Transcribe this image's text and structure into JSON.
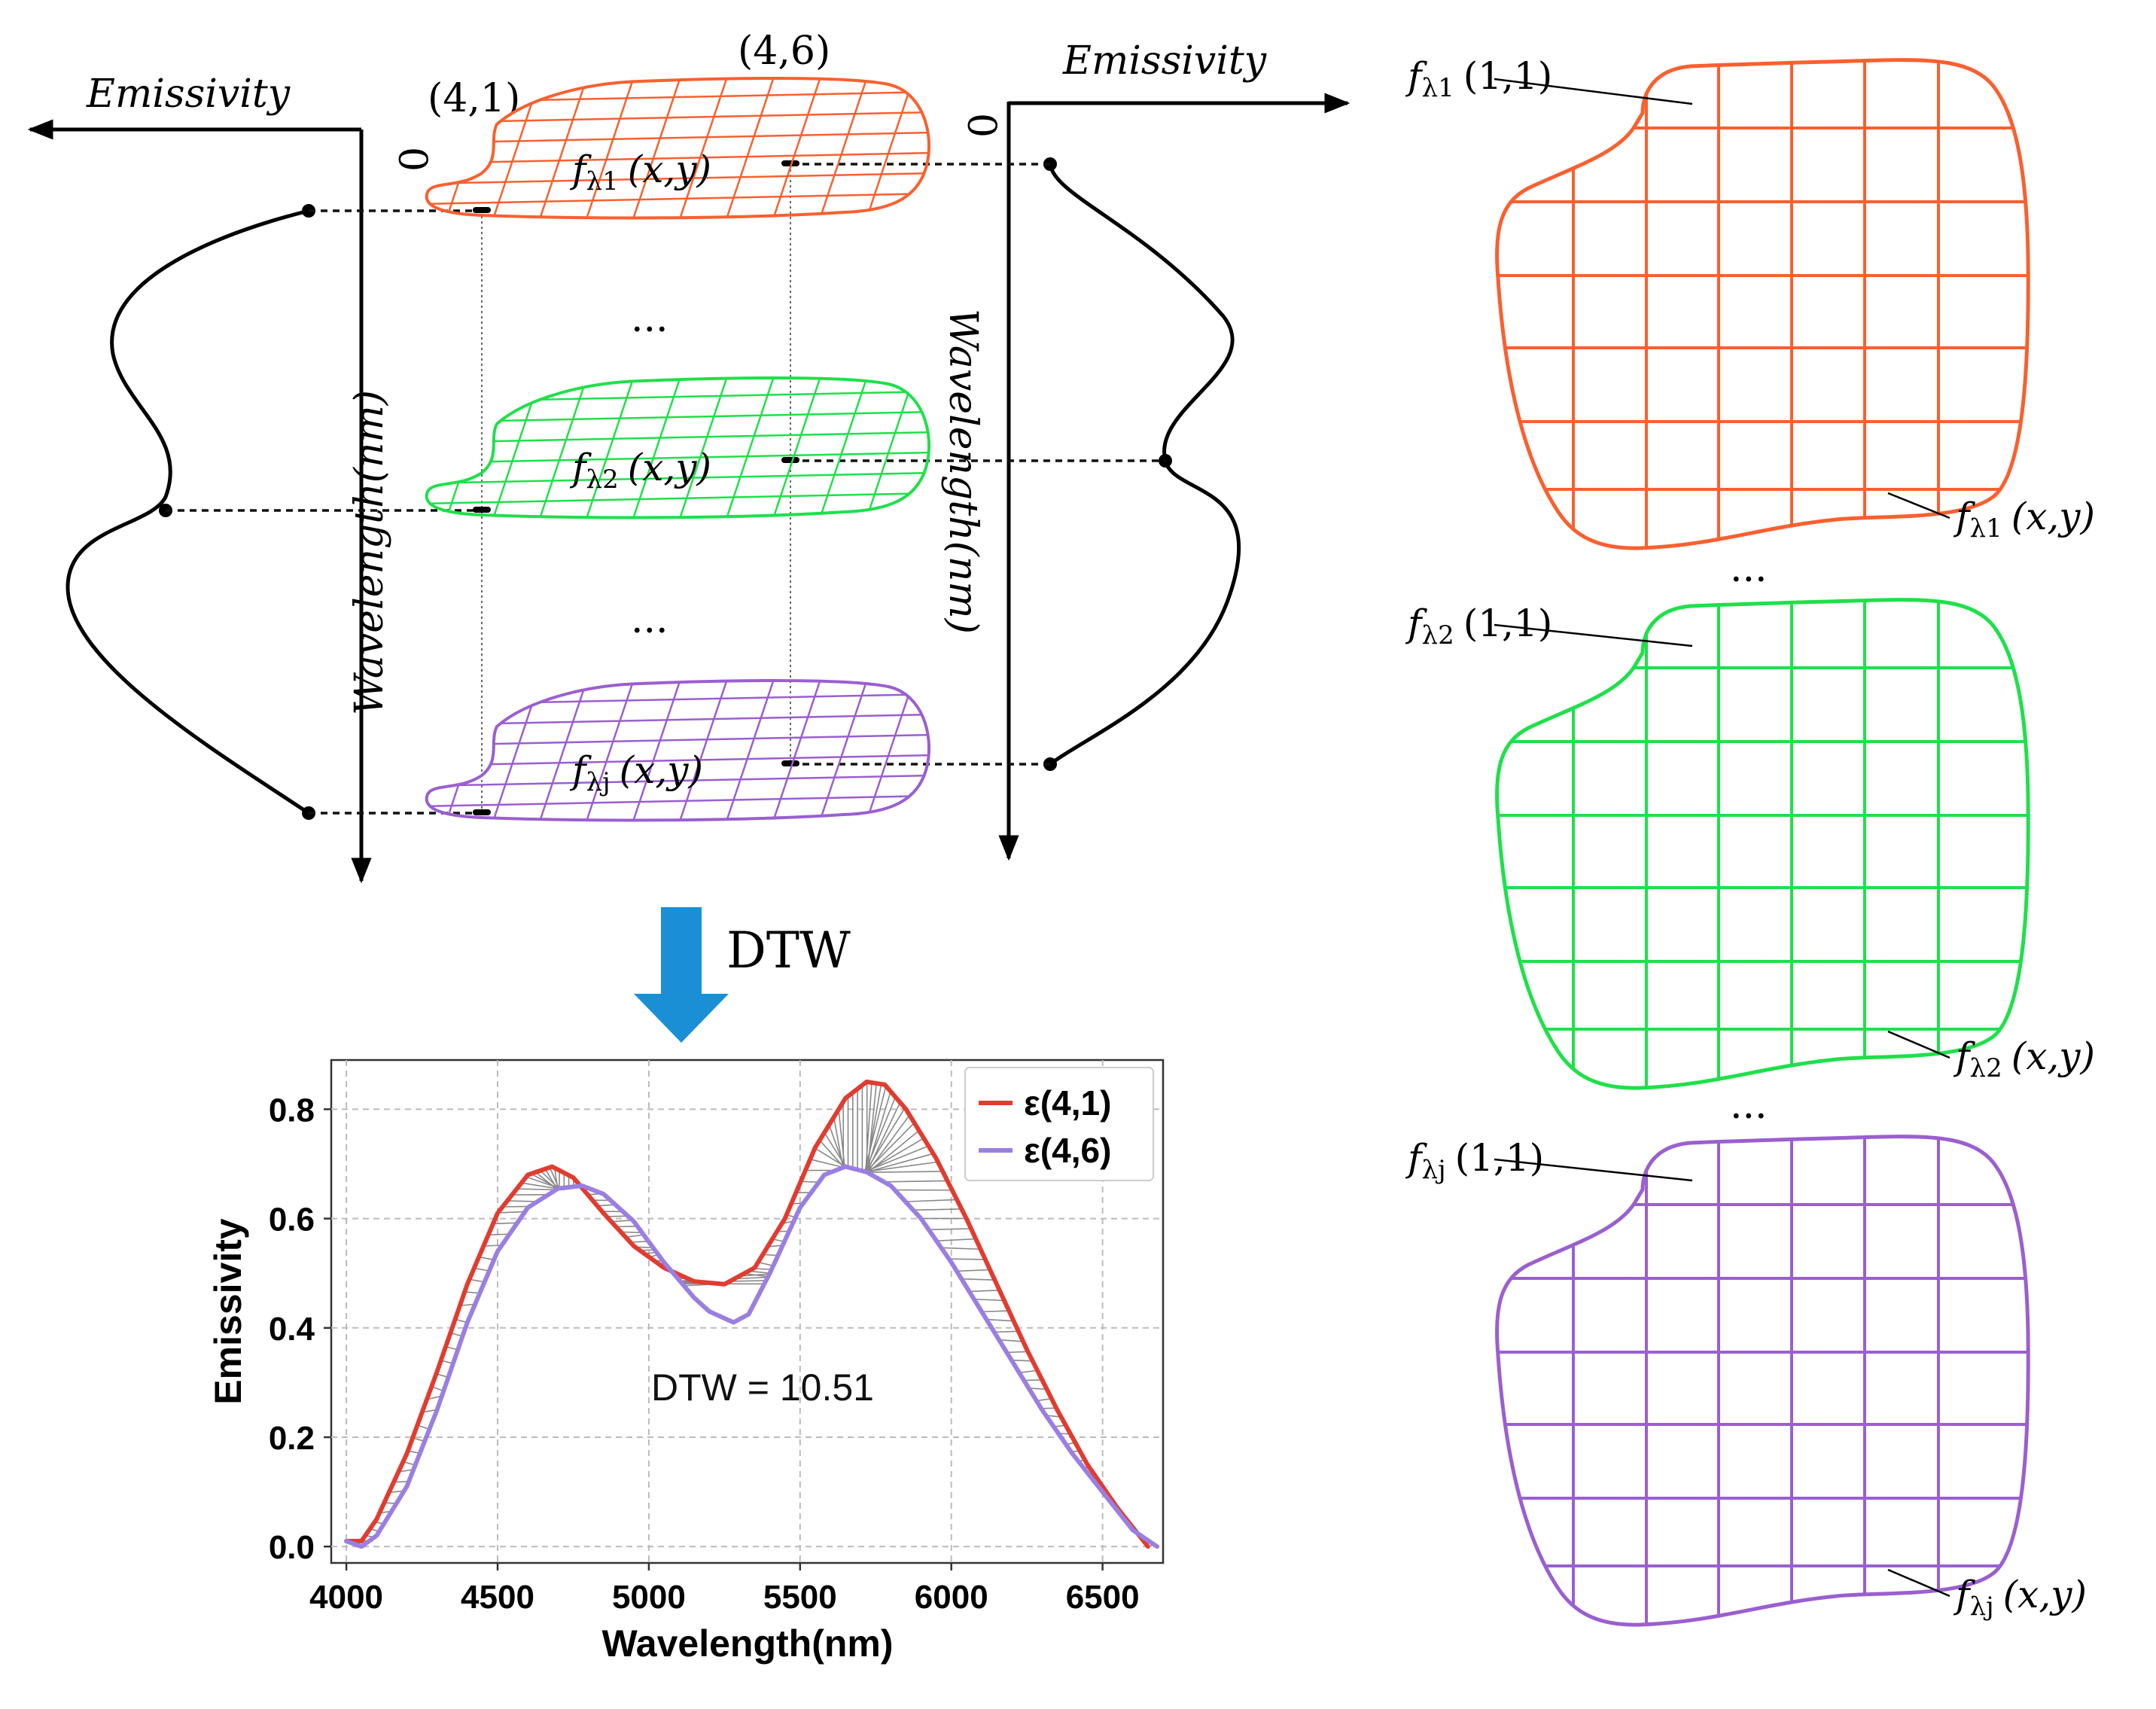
{
  "colors": {
    "red": "#f9602f",
    "green": "#1fe04a",
    "purple": "#9a5fd0",
    "arrow": "#1a8fd6",
    "eps41": "#e13c30",
    "eps46": "#9a7fe2"
  },
  "stack": {
    "left_axis_label": "Emissivity",
    "right_axis_label": "Emissivity",
    "left_zero": "0",
    "right_zero": "0",
    "left_wavelength_label": "Wavelength(nm)",
    "right_wavelength_label": "Wavelength(nm)",
    "coord_a": "(4,1)",
    "coord_b": "(4,6)",
    "ellipsis": "...",
    "slices": [
      {
        "f": "f",
        "sub": "λ1",
        "args": "(x,y)",
        "color": "red"
      },
      {
        "f": "f",
        "sub": "λ2",
        "args": "(x,y)",
        "color": "green"
      },
      {
        "f": "f",
        "sub": "λj",
        "args": "(x,y)",
        "color": "purple"
      }
    ]
  },
  "arrow_label": "DTW",
  "grids": [
    {
      "corner": {
        "f": "f",
        "sub": "λ1",
        "args": "(1,1)"
      },
      "whole": {
        "f": "f",
        "sub": "λ1",
        "args": "(x,y)"
      },
      "color": "red"
    },
    {
      "corner": {
        "f": "f",
        "sub": "λ2",
        "args": "(1,1)"
      },
      "whole": {
        "f": "f",
        "sub": "λ2",
        "args": "(x,y)"
      },
      "color": "green"
    },
    {
      "corner": {
        "f": "f",
        "sub": "λj",
        "args": "(1,1)"
      },
      "whole": {
        "f": "f",
        "sub": "λj",
        "args": "(x,y)"
      },
      "color": "purple"
    }
  ],
  "grid_ellipsis": "...",
  "chart_data": {
    "type": "line",
    "title": "",
    "xlabel": "Wavelength(nm)",
    "ylabel": "Emissivity",
    "xlim": [
      3950,
      6700
    ],
    "ylim": [
      -0.03,
      0.89
    ],
    "xticks": [
      4000,
      4500,
      5000,
      5500,
      6000,
      6500
    ],
    "yticks": [
      0.0,
      0.2,
      0.4,
      0.6,
      0.8
    ],
    "grid": true,
    "legend_position": "top-right",
    "annotation": "DTW = 10.51",
    "series": [
      {
        "name": "ε(4,1)",
        "color": "eps41",
        "x": [
          4000,
          4050,
          4100,
          4200,
          4300,
          4400,
          4500,
          4600,
          4680,
          4750,
          4850,
          4950,
          5050,
          5150,
          5250,
          5350,
          5450,
          5550,
          5650,
          5720,
          5780,
          5850,
          5950,
          6050,
          6150,
          6250,
          6350,
          6450,
          6550,
          6650
        ],
        "y": [
          0.01,
          0.01,
          0.05,
          0.17,
          0.32,
          0.48,
          0.61,
          0.68,
          0.695,
          0.675,
          0.61,
          0.55,
          0.51,
          0.485,
          0.48,
          0.51,
          0.6,
          0.73,
          0.82,
          0.85,
          0.845,
          0.8,
          0.71,
          0.6,
          0.48,
          0.36,
          0.25,
          0.15,
          0.07,
          0.0
        ]
      },
      {
        "name": "ε(4,6)",
        "color": "eps46",
        "x": [
          4000,
          4050,
          4100,
          4200,
          4300,
          4400,
          4500,
          4600,
          4700,
          4780,
          4850,
          4950,
          5050,
          5150,
          5200,
          5280,
          5330,
          5400,
          5500,
          5580,
          5650,
          5720,
          5800,
          5900,
          6000,
          6100,
          6200,
          6300,
          6400,
          6500,
          6600,
          6680
        ],
        "y": [
          0.01,
          0.0,
          0.02,
          0.11,
          0.25,
          0.41,
          0.54,
          0.62,
          0.655,
          0.66,
          0.645,
          0.595,
          0.52,
          0.455,
          0.43,
          0.41,
          0.425,
          0.5,
          0.62,
          0.68,
          0.695,
          0.685,
          0.66,
          0.6,
          0.52,
          0.43,
          0.34,
          0.25,
          0.17,
          0.1,
          0.03,
          0.0
        ]
      }
    ]
  }
}
